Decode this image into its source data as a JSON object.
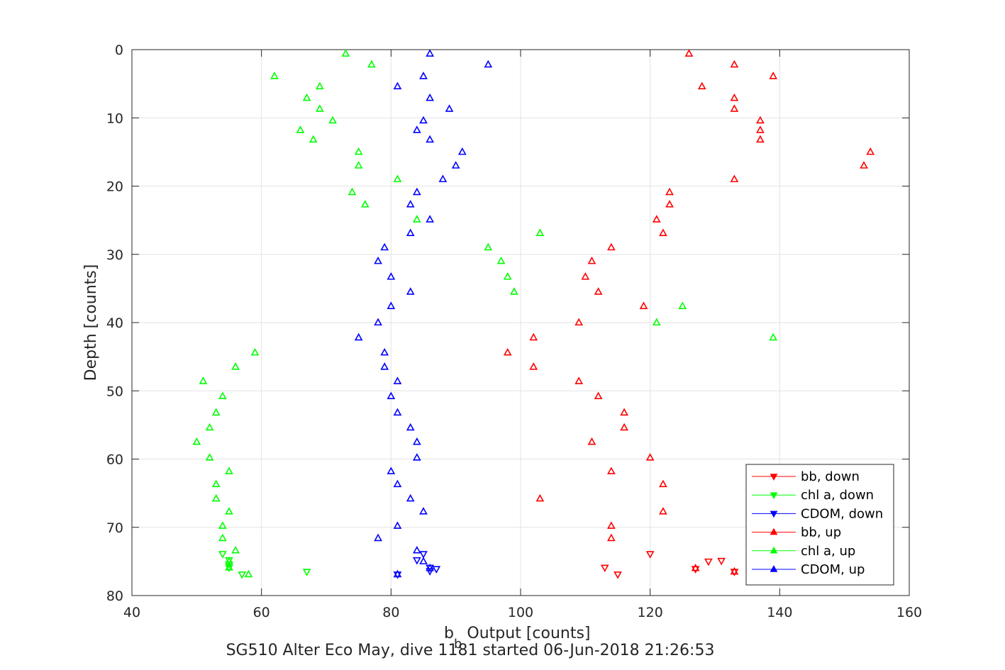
{
  "chart_data": {
    "type": "scatter",
    "title": "",
    "xlabel_main": "b",
    "xlabel_sub": "b",
    "xlabel_rest": " Output [counts]",
    "ylabel": "Depth [counts]",
    "caption": "SG510 Alter Eco May, dive 1181 started 06-Jun-2018 21:26:53",
    "xlim": [
      40,
      160
    ],
    "ylim": [
      0,
      80
    ],
    "y_reversed": true,
    "grid": true,
    "xticks": [
      40,
      60,
      80,
      100,
      120,
      140,
      160
    ],
    "yticks": [
      0,
      10,
      20,
      30,
      40,
      50,
      60,
      70,
      80
    ],
    "legend_position": "bottom-right",
    "series": [
      {
        "name": "bb, down",
        "color": "#ff0000",
        "marker": "triangle-down",
        "points": [
          [
            131,
            74.9
          ],
          [
            129,
            75.0
          ],
          [
            120,
            73.9
          ],
          [
            113,
            75.9
          ],
          [
            115,
            76.9
          ],
          [
            133,
            76.5
          ],
          [
            127,
            76.1
          ]
        ]
      },
      {
        "name": "chl a, down",
        "color": "#00ff00",
        "marker": "triangle-down",
        "points": [
          [
            54,
            73.9
          ],
          [
            55,
            74.8
          ],
          [
            55,
            75.4
          ],
          [
            55,
            75.9
          ],
          [
            57,
            76.9
          ],
          [
            67,
            76.5
          ]
        ]
      },
      {
        "name": "CDOM, down",
        "color": "#0000ff",
        "marker": "triangle-down",
        "points": [
          [
            85,
            73.9
          ],
          [
            84,
            74.8
          ],
          [
            86,
            75.9
          ],
          [
            87,
            76.1
          ],
          [
            81,
            76.9
          ],
          [
            86,
            76.4
          ]
        ]
      },
      {
        "name": "bb, up",
        "color": "#ff0000",
        "marker": "triangle-up",
        "points": [
          [
            126,
            0.6
          ],
          [
            133,
            2.2
          ],
          [
            139,
            3.9
          ],
          [
            128,
            5.4
          ],
          [
            133,
            7.1
          ],
          [
            133,
            8.7
          ],
          [
            137,
            10.4
          ],
          [
            137,
            11.8
          ],
          [
            137,
            13.2
          ],
          [
            154,
            15.0
          ],
          [
            153,
            17.0
          ],
          [
            133,
            19.0
          ],
          [
            123,
            20.9
          ],
          [
            123,
            22.7
          ],
          [
            121,
            24.9
          ],
          [
            122,
            26.9
          ],
          [
            114,
            29.0
          ],
          [
            111,
            31.0
          ],
          [
            110,
            33.3
          ],
          [
            112,
            35.5
          ],
          [
            119,
            37.6
          ],
          [
            109,
            40.0
          ],
          [
            102,
            42.2
          ],
          [
            98,
            44.4
          ],
          [
            102,
            46.5
          ],
          [
            109,
            48.6
          ],
          [
            112,
            50.8
          ],
          [
            116,
            53.2
          ],
          [
            116,
            55.4
          ],
          [
            111,
            57.5
          ],
          [
            120,
            59.8
          ],
          [
            114,
            61.8
          ],
          [
            122,
            63.7
          ],
          [
            103,
            65.8
          ],
          [
            122,
            67.7
          ],
          [
            114,
            69.8
          ],
          [
            114,
            71.6
          ],
          [
            127,
            76.0
          ],
          [
            133,
            76.5
          ]
        ]
      },
      {
        "name": "chl a, up",
        "color": "#00ff00",
        "marker": "triangle-up",
        "points": [
          [
            73,
            0.6
          ],
          [
            77,
            2.2
          ],
          [
            62,
            3.9
          ],
          [
            69,
            5.4
          ],
          [
            67,
            7.1
          ],
          [
            69,
            8.7
          ],
          [
            71,
            10.4
          ],
          [
            66,
            11.8
          ],
          [
            68,
            13.2
          ],
          [
            75,
            15.0
          ],
          [
            75,
            17.0
          ],
          [
            81,
            19.0
          ],
          [
            74,
            20.9
          ],
          [
            76,
            22.7
          ],
          [
            84,
            24.9
          ],
          [
            103,
            26.9
          ],
          [
            95,
            29.0
          ],
          [
            97,
            31.0
          ],
          [
            98,
            33.3
          ],
          [
            99,
            35.5
          ],
          [
            125,
            37.6
          ],
          [
            121,
            40.0
          ],
          [
            139,
            42.2
          ],
          [
            59,
            44.4
          ],
          [
            56,
            46.5
          ],
          [
            51,
            48.6
          ],
          [
            54,
            50.8
          ],
          [
            53,
            53.2
          ],
          [
            52,
            55.4
          ],
          [
            50,
            57.5
          ],
          [
            52,
            59.8
          ],
          [
            55,
            61.8
          ],
          [
            53,
            63.7
          ],
          [
            53,
            65.8
          ],
          [
            55,
            67.7
          ],
          [
            54,
            69.8
          ],
          [
            54,
            71.6
          ],
          [
            56,
            73.4
          ],
          [
            55,
            75.0
          ],
          [
            55,
            75.9
          ],
          [
            58,
            76.9
          ]
        ]
      },
      {
        "name": "CDOM, up",
        "color": "#0000ff",
        "marker": "triangle-up",
        "points": [
          [
            86,
            0.6
          ],
          [
            95,
            2.2
          ],
          [
            85,
            3.9
          ],
          [
            81,
            5.4
          ],
          [
            86,
            7.1
          ],
          [
            89,
            8.7
          ],
          [
            85,
            10.4
          ],
          [
            84,
            11.8
          ],
          [
            86,
            13.2
          ],
          [
            91,
            15.0
          ],
          [
            90,
            17.0
          ],
          [
            88,
            19.0
          ],
          [
            84,
            20.9
          ],
          [
            83,
            22.7
          ],
          [
            86,
            24.9
          ],
          [
            83,
            26.9
          ],
          [
            79,
            29.0
          ],
          [
            78,
            31.0
          ],
          [
            80,
            33.3
          ],
          [
            83,
            35.5
          ],
          [
            80,
            37.6
          ],
          [
            78,
            40.0
          ],
          [
            75,
            42.2
          ],
          [
            79,
            44.4
          ],
          [
            79,
            46.5
          ],
          [
            81,
            48.6
          ],
          [
            80,
            50.8
          ],
          [
            81,
            53.2
          ],
          [
            83,
            55.4
          ],
          [
            84,
            57.5
          ],
          [
            84,
            59.8
          ],
          [
            80,
            61.8
          ],
          [
            81,
            63.7
          ],
          [
            83,
            65.8
          ],
          [
            85,
            67.7
          ],
          [
            81,
            69.8
          ],
          [
            78,
            71.6
          ],
          [
            84,
            73.4
          ],
          [
            85,
            75.0
          ],
          [
            86,
            76.0
          ],
          [
            81,
            76.9
          ]
        ]
      }
    ]
  }
}
